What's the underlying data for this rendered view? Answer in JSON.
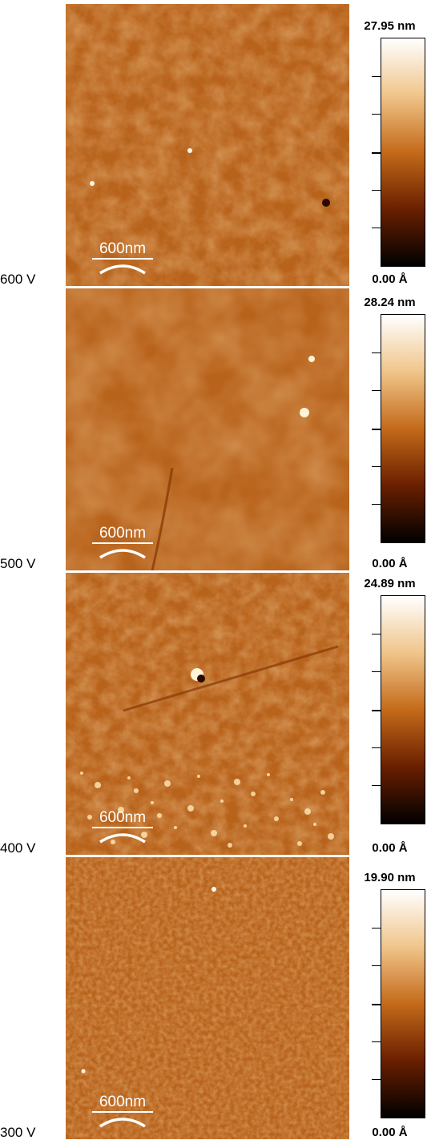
{
  "scale_bar_label": "600nm",
  "colormap": {
    "stops": [
      "#000000",
      "#6a1f00",
      "#c46a1a",
      "#f0c58a",
      "#ffffff"
    ],
    "surface_base": "#b8631c",
    "surface_dark": "#8a3c0a",
    "surface_light": "#e8a25a"
  },
  "panels": [
    {
      "voltage": "600 V",
      "max": "27.95 nm",
      "min": "0.00 Å"
    },
    {
      "voltage": "500 V",
      "max": "28.24 nm",
      "min": "0.00 Å"
    },
    {
      "voltage": "400 V",
      "max": "24.89 nm",
      "min": "0.00 Å"
    },
    {
      "voltage": "300 V",
      "max": "19.90 nm",
      "min": "0.00 Å"
    }
  ]
}
